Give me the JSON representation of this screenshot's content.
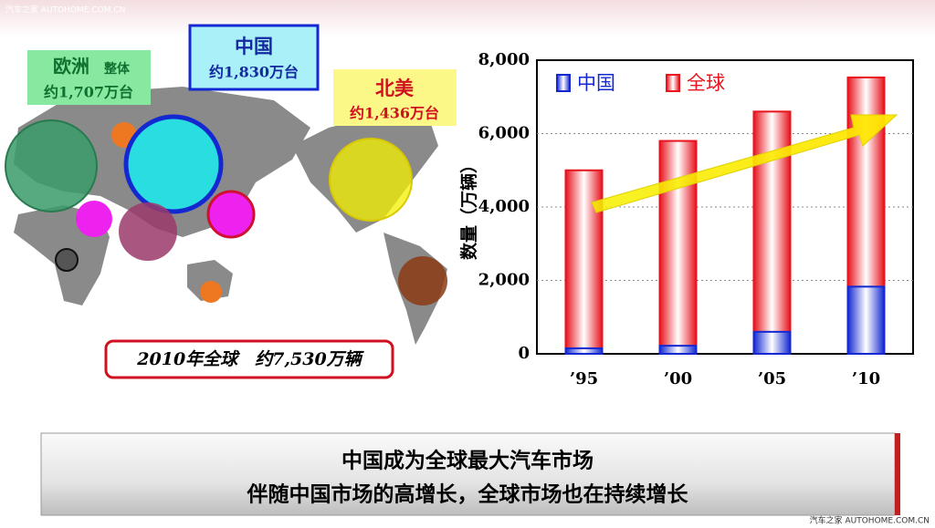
{
  "watermark_top": "汽车之家 AUTOHOME.COM.CN",
  "watermark_bottom": "汽车之家 AUTOHOME.COM.CN",
  "map": {
    "europe": {
      "name": "欧洲",
      "note": "整体",
      "value": "约1,707万台"
    },
    "china": {
      "name": "中国",
      "value": "约1,830万台"
    },
    "north_america": {
      "name": "北美",
      "value": "约1,436万台"
    },
    "world_total": "2010年全球　约7,530万辆"
  },
  "banner": {
    "line1": "中国成为全球最大汽车市场",
    "line2": "伴随中国市场的高增长，全球市场也在持续增长"
  },
  "chart_data": {
    "type": "bar",
    "ylabel": "数量（万辆）",
    "categories": [
      "’95",
      "’00",
      "’05",
      "’10"
    ],
    "series": [
      {
        "name": "全球",
        "color": "#e8141e",
        "values": [
          5000,
          5800,
          6600,
          7530
        ]
      },
      {
        "name": "中国",
        "color": "#1428d2",
        "values": [
          150,
          220,
          600,
          1830
        ]
      }
    ],
    "overlap": true,
    "ylim": [
      0,
      8000
    ],
    "yticks": [
      0,
      {
        "value": 2000,
        "label": "2,000"
      },
      {
        "value": 4000,
        "label": "4,000"
      },
      {
        "value": 6000,
        "label": "6,000"
      },
      {
        "value": 8000,
        "label": "8,000"
      }
    ],
    "grid": true,
    "legend": "top-left"
  }
}
